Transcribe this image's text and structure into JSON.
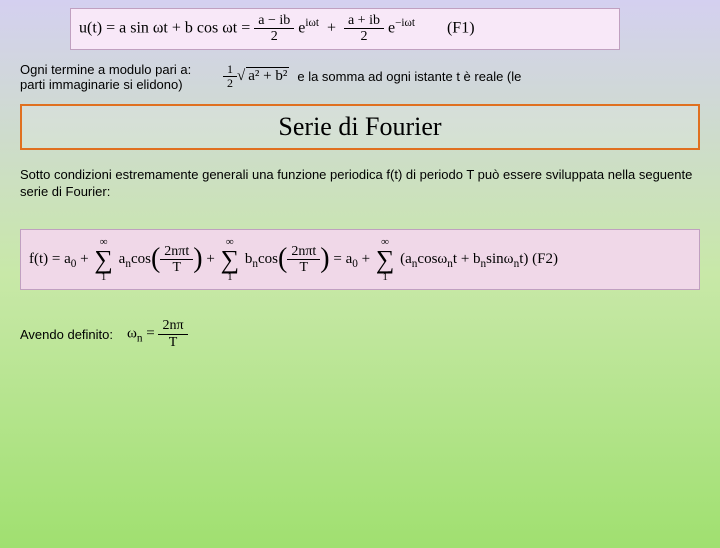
{
  "formula_top": {
    "lhs": "u(t) = a sin ωt + b cos ωt",
    "term1_num": "a − ib",
    "term1_den": "2",
    "term1_exp": "iωt",
    "term2_num": "a + ib",
    "term2_den": "2",
    "term2_exp": "−iωt",
    "eq_label": "(F1)"
  },
  "row1": {
    "left_text": "Ogni termine a modulo pari a:\nparti immaginarie si elidono)",
    "left_line1": "Ogni termine a modulo pari a:",
    "left_line2": "parti immaginarie si elidono)",
    "frac_num": "1",
    "frac_den": "2",
    "sqrt_inner": "a² + b²",
    "right_text": "e la somma ad ogni istante t è reale (le"
  },
  "title": "Serie di Fourier",
  "para1": "Sotto condizioni estremamente generali una  funzione periodica f(t) di periodo T può essere sviluppata nella seguente serie di Fourier:",
  "formula_wide": {
    "lhs": "f(t) = a",
    "a0_sub": "0",
    "a_sub": "n",
    "b_sub": "n",
    "cos_arg_num": "2nπt",
    "cos_arg_den": "T",
    "sum_top": "∞",
    "sum_bot": "1",
    "omega_sub": "n",
    "eq_label": "(F2)"
  },
  "def": {
    "label": "Avendo definito:",
    "lhs_sym": "ω",
    "lhs_sub": "n",
    "num": "2nπ",
    "den": "T"
  },
  "colors": {
    "title_border": "#e07020",
    "formula_bg_top": "#f8e8f8",
    "formula_bg_wide": "#f0d8e8"
  }
}
